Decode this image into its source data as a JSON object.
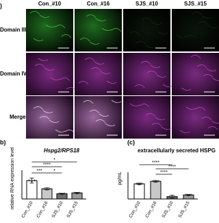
{
  "panel_a": {
    "label": ")",
    "columns": [
      "Con_#10",
      "Con_#16",
      "SJS_#10",
      "SJS_#15"
    ],
    "rows": [
      "Domain III",
      "Domain IV",
      "Merge"
    ]
  },
  "chart_data": [
    {
      "type": "bar",
      "label": "b)",
      "title": "Hspg2/RPS18",
      "ylabel": "relative RNA expression level",
      "categories": [
        "Con_#10",
        "Con_#16",
        "SJS_#10",
        "SJS_#15"
      ],
      "values": [
        1.45,
        0.8,
        0.42,
        0.48
      ],
      "errors": [
        0.2,
        0.08,
        0.03,
        0.04
      ],
      "colors": [
        "#ffffff",
        "#c8c8c8",
        "#6e6e6e",
        "#9a9a9a"
      ],
      "ylim": [
        0,
        2
      ],
      "annotations": [
        "*",
        "****",
        "***",
        "*"
      ]
    },
    {
      "type": "bar",
      "label": "(c)",
      "title": "extracellularly secreted  HSPG",
      "ylabel": "pg/mL",
      "categories": [
        "Con_#10",
        "Con_#16",
        "SJS_#10",
        "SJS_#15"
      ],
      "values": [
        1.3,
        1.52,
        0.2,
        0.35
      ],
      "errors": [
        0.06,
        0.07,
        0.12,
        0.04
      ],
      "colors": [
        "#ffffff",
        "#c8c8c8",
        "#6e6e6e",
        "#9a9a9a"
      ],
      "ylim": [
        0,
        2
      ],
      "annotations": [
        "****",
        "****",
        "****"
      ]
    }
  ]
}
